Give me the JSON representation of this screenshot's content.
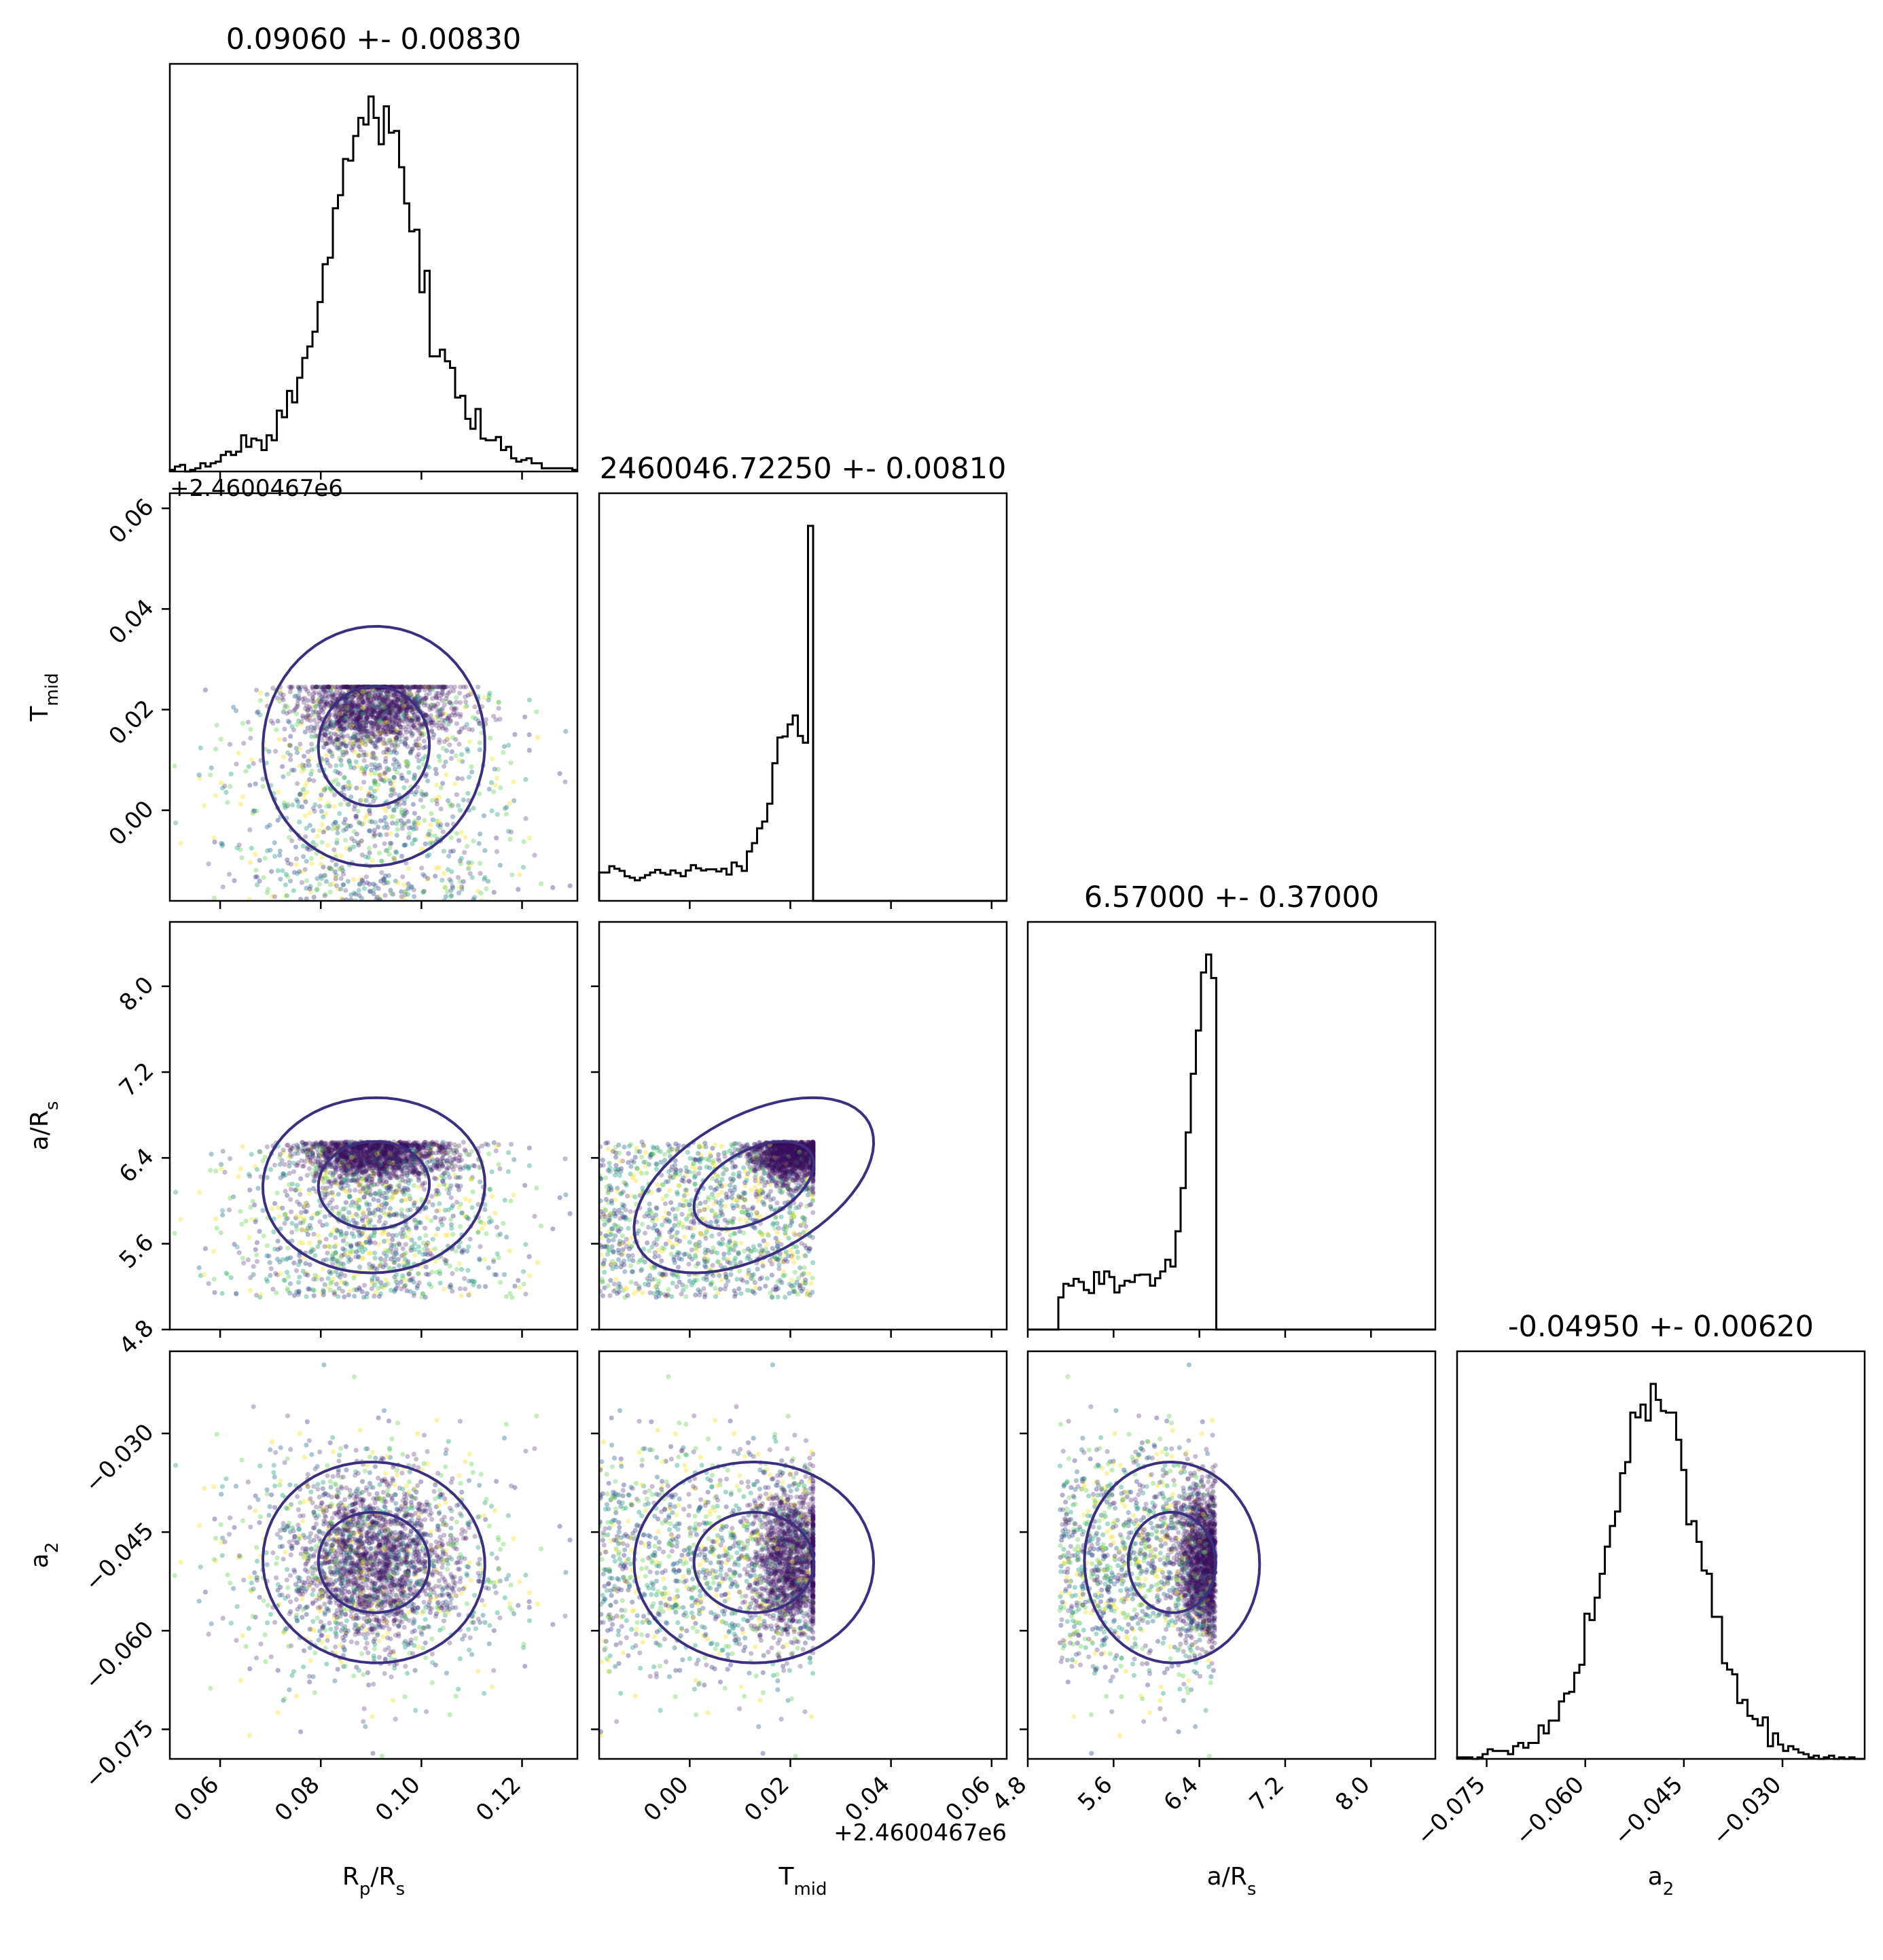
{
  "chart_data": {
    "type": "scatter",
    "subtype": "corner-plot",
    "parameters": [
      {
        "name": "rp",
        "label": "R",
        "label_sub": "p",
        "label_tail": "/R",
        "label_tail_sub": "s",
        "range": [
          0.05,
          0.131
        ],
        "ticks": [
          0.06,
          0.08,
          0.1,
          0.12
        ],
        "tick_labels": [
          "0.06",
          "0.08",
          "0.10",
          "0.12"
        ]
      },
      {
        "name": "tmid",
        "label": "T",
        "label_sub": "mid",
        "label_tail": "",
        "label_tail_sub": "",
        "range": [
          -0.018,
          0.063
        ],
        "ticks": [
          0.0,
          0.02,
          0.04,
          0.06
        ],
        "tick_labels": [
          "0.00",
          "0.02",
          "0.04",
          "0.06"
        ],
        "offset_text": "+2.4600467e6"
      },
      {
        "name": "ars",
        "label": "a/R",
        "label_sub": "s",
        "label_tail": "",
        "label_tail_sub": "",
        "range": [
          4.8,
          8.6
        ],
        "ticks": [
          4.8,
          5.6,
          6.4,
          7.2,
          8.0
        ],
        "tick_labels": [
          "4.8",
          "5.6",
          "6.4",
          "7.2",
          "8.0"
        ]
      },
      {
        "name": "a2",
        "label": "a",
        "label_sub": "2",
        "label_tail": "",
        "label_tail_sub": "",
        "range": [
          -0.0795,
          -0.0175
        ],
        "ticks": [
          -0.075,
          -0.06,
          -0.045,
          -0.03
        ],
        "tick_labels": [
          "−0.075",
          "−0.060",
          "−0.045",
          "−0.030"
        ]
      }
    ],
    "titles": [
      "0.09060 +- 0.00830",
      "2460046.72250 +- 0.00810",
      "6.57000 +- 0.37000",
      "-0.04950 +- 0.00620"
    ],
    "marginals": {
      "rp": {
        "center": 0.0906,
        "sigma": 0.0083
      },
      "tmid": {
        "peak": 0.0205,
        "cutoff": 0.0245
      },
      "ars": {
        "min": 5.1,
        "max": 6.55,
        "peak": 6.5
      },
      "a2": {
        "center": -0.0495,
        "sigma": 0.0062
      }
    },
    "colors": {
      "hist_line": "#000000",
      "contour": "#3b2f7f",
      "contour_extreme": "#f5d000",
      "points": [
        "#46176b",
        "#3c3c8a",
        "#2d6e8e",
        "#23a27f",
        "#6ecf59",
        "#f2e32a"
      ],
      "dense_point": "#3a0f5c"
    }
  }
}
